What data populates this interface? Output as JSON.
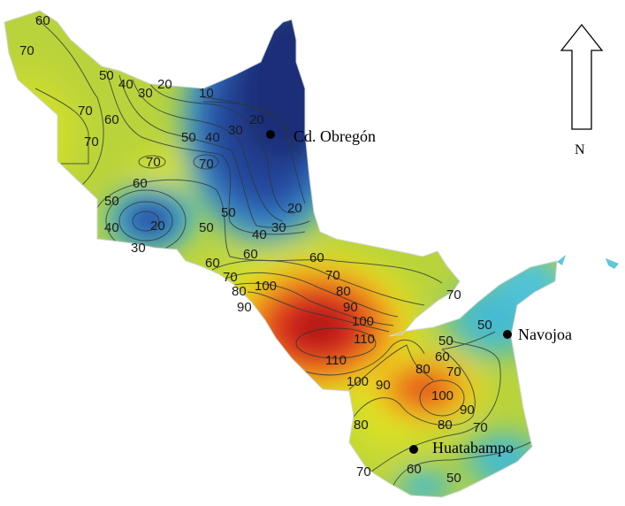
{
  "map": {
    "colors": {
      "base": "#b9d33c",
      "high_yellow": "#e3e61f",
      "low_dark_blue": "#1f3584",
      "low_blue": "#2f62b8",
      "cyan": "#3fc2e0",
      "orange": "#f29a1c",
      "red": "#d9231e",
      "dark_red": "#9c1414",
      "teal": "#54bcb0"
    },
    "contour_values": [
      10,
      20,
      30,
      40,
      50,
      60,
      70,
      80,
      90,
      100,
      110
    ],
    "contour_labels": [
      "60",
      "70",
      "70",
      "50",
      "40",
      "30",
      "20",
      "10",
      "60",
      "50",
      "40",
      "30",
      "20",
      "70",
      "70",
      "70",
      "60",
      "60",
      "50",
      "40",
      "30",
      "20",
      "50",
      "50",
      "40",
      "30",
      "20",
      "60",
      "70",
      "80",
      "90",
      "100",
      "60",
      "70",
      "80",
      "90",
      "100",
      "110",
      "110",
      "100",
      "90",
      "70",
      "50",
      "50",
      "60",
      "80",
      "70",
      "100",
      "90",
      "80",
      "70",
      "80",
      "70",
      "60",
      "50"
    ],
    "cities": [
      {
        "name": "Cd. Obregón"
      },
      {
        "name": "Navojoa"
      },
      {
        "name": "Huatabampo"
      }
    ],
    "north_arrow": {
      "label": "N"
    }
  }
}
